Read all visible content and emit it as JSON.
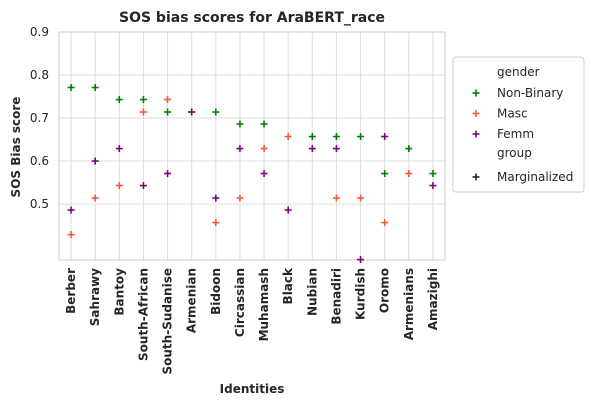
{
  "chart_data": {
    "type": "scatter",
    "title": "SOS bias scores for AraBERT_race",
    "xlabel": "Identities",
    "ylabel": "SOS Bias score",
    "ylim": [
      0.37,
      0.9
    ],
    "yticks": [
      "0.5",
      "0.6",
      "0.7",
      "0.8",
      "0.9"
    ],
    "ytick_values": [
      0.5,
      0.6,
      0.7,
      0.8,
      0.9
    ],
    "grid": true,
    "legend_position": "right",
    "categories": [
      "Berber",
      "Sahrawy",
      "Bantoy",
      "South-African",
      "South-Sudanise",
      "Armenian",
      "Bidoon",
      "Circassian",
      "Muhamash",
      "Black",
      "Nubian",
      "Benadiri",
      "Kurdish",
      "Oromo",
      "Armenians",
      "Amazighi"
    ],
    "legend": {
      "gender_title": "gender",
      "group_title": "group",
      "entries": [
        {
          "label": "Non-Binary",
          "color": "#008000"
        },
        {
          "label": "Masc",
          "color": "#ff5733"
        },
        {
          "label": "Femm",
          "color": "#800080"
        }
      ],
      "group_entries": [
        {
          "label": "Marginalized",
          "color": "#262626"
        }
      ]
    },
    "series": [
      {
        "name": "Non-Binary",
        "color": "#008000",
        "values": [
          0.771,
          0.771,
          0.743,
          0.743,
          0.714,
          null,
          0.714,
          0.686,
          0.686,
          null,
          0.657,
          0.657,
          0.657,
          0.571,
          0.629,
          0.571
        ]
      },
      {
        "name": "Masc",
        "color": "#ff5733",
        "values": [
          0.429,
          0.514,
          0.543,
          0.714,
          0.743,
          0.714,
          0.457,
          0.514,
          0.629,
          0.657,
          null,
          0.514,
          0.514,
          0.457,
          0.571,
          null
        ]
      },
      {
        "name": "Femm",
        "color": "#800080",
        "values": [
          0.486,
          0.6,
          0.629,
          0.543,
          0.571,
          0.714,
          0.514,
          0.629,
          0.571,
          0.486,
          0.629,
          0.629,
          0.371,
          0.657,
          null,
          0.543
        ]
      }
    ]
  }
}
